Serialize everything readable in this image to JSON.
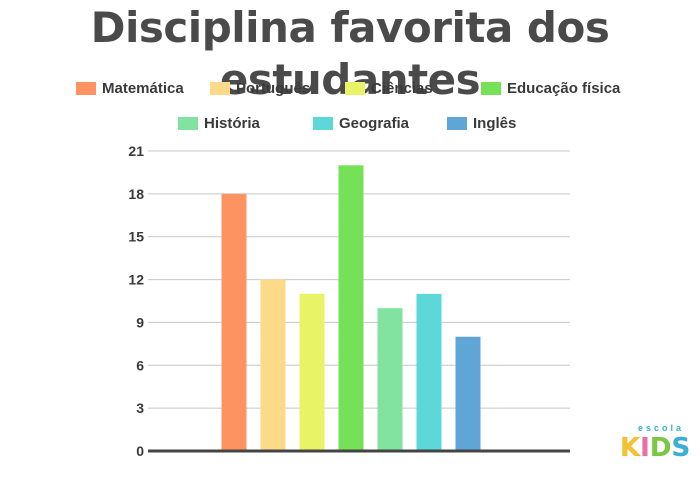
{
  "chart_data": {
    "type": "bar",
    "title": "Disciplina favorita dos estudantes",
    "categories": [
      "Matemática",
      "Português",
      "Ciências",
      "Educação física",
      "História",
      "Geografia",
      "Inglês"
    ],
    "values": [
      18,
      12,
      11,
      20,
      10,
      11,
      8
    ],
    "colors": [
      "#fd9361",
      "#fdd98a",
      "#e8f365",
      "#75e157",
      "#82e3a0",
      "#5dd8d8",
      "#5fa5d6"
    ],
    "yticks": [
      0,
      3,
      6,
      9,
      12,
      15,
      18,
      21
    ],
    "ylim": [
      0,
      21
    ],
    "grid": true,
    "legend_position": "top"
  },
  "logo": {
    "small_text": "escola",
    "letters": [
      "K",
      "I",
      "D",
      "S"
    ],
    "letter_colors": [
      "#f5c32c",
      "#ef6fa5",
      "#7ac943",
      "#39b0d8"
    ]
  }
}
